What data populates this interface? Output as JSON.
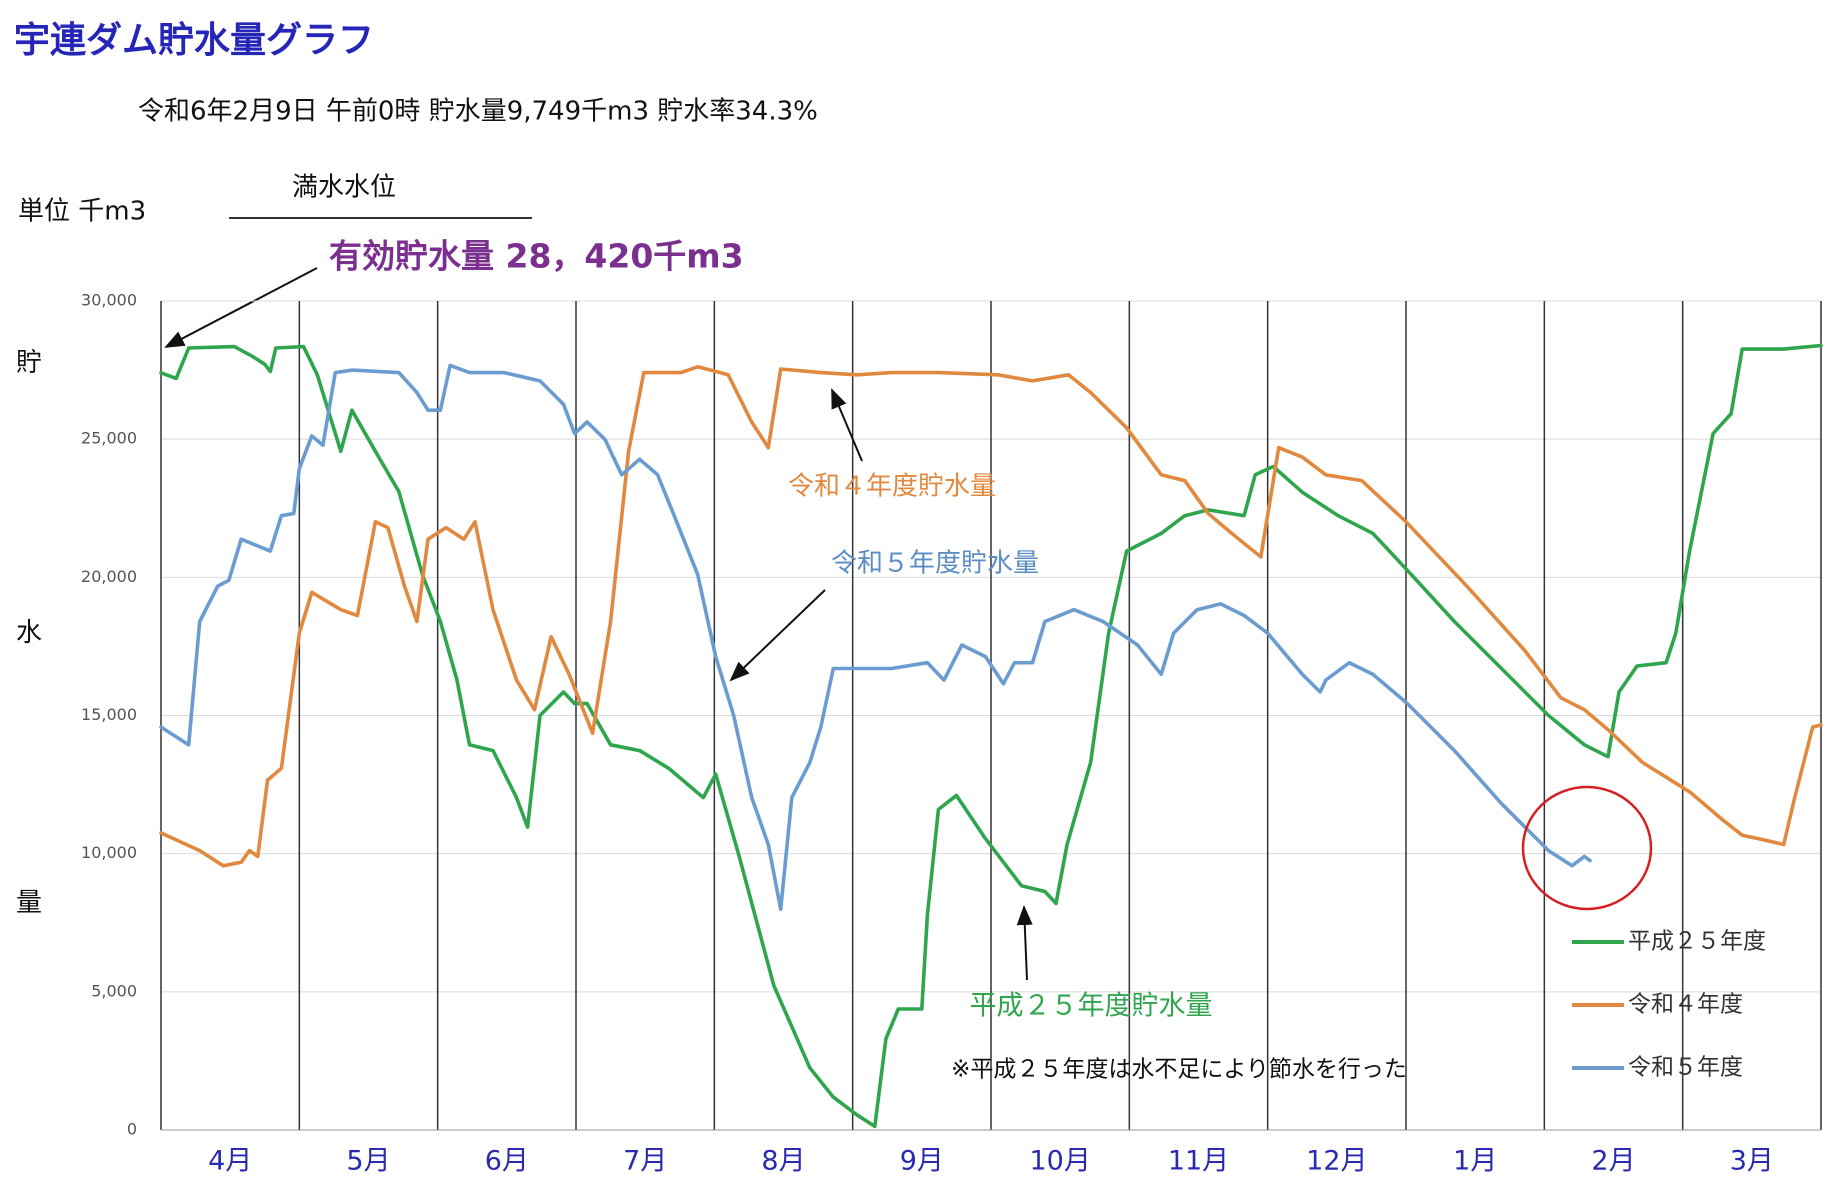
{
  "chart_data": {
    "type": "line",
    "title": "宇連ダム貯水量グラフ",
    "subtitle": "令和6年2月9日 午前0時  貯水量9,749千m3  貯水率34.3%",
    "unit_label": "単位  千m3",
    "full_level_label": "満水水位",
    "capacity_label": "有効貯水量 28，420千m3",
    "y_label": "貯水量",
    "annotations": [
      "令和４年度貯水量",
      "令和５年度貯水量",
      "平成２５年度貯水量"
    ],
    "note": "※平成２５年度は水不足により節水を行った",
    "xlim": [
      0,
      12
    ],
    "xticks": [
      {
        "value": 0.5,
        "label": "4月"
      },
      {
        "value": 1.5,
        "label": "5月"
      },
      {
        "value": 2.5,
        "label": "6月"
      },
      {
        "value": 3.5,
        "label": "7月"
      },
      {
        "value": 4.5,
        "label": "8月"
      },
      {
        "value": 5.5,
        "label": "9月"
      },
      {
        "value": 6.5,
        "label": "10月"
      },
      {
        "value": 7.5,
        "label": "11月"
      },
      {
        "value": 8.5,
        "label": "12月"
      },
      {
        "value": 9.5,
        "label": "1月"
      },
      {
        "value": 10.5,
        "label": "2月"
      },
      {
        "value": 11.5,
        "label": "3月"
      }
    ],
    "ylim": [
      0,
      30000
    ],
    "yticks": [
      0,
      {
        "value": 5000,
        "label": "5,000"
      },
      {
        "value": 10000,
        "label": "10,000"
      },
      {
        "value": 15000,
        "label": "15,000"
      },
      {
        "value": 20000,
        "label": "20,000"
      },
      {
        "value": 25000,
        "label": "25,000"
      },
      {
        "value": 30000,
        "label": "30,000"
      }
    ],
    "grid": true,
    "legend": "lower right",
    "series": [
      {
        "name": "平成２５年度",
        "color": "#2fa64e",
        "x": [
          0,
          0.11,
          0.2,
          0.53,
          0.66,
          0.75,
          0.79,
          0.83,
          1.03,
          1.13,
          1.3,
          1.38,
          1.55,
          1.72,
          1.89,
          2.02,
          2.14,
          2.23,
          2.4,
          2.57,
          2.65,
          2.74,
          2.91,
          2.99,
          3.08,
          3.25,
          3.46,
          3.67,
          3.92,
          4.01,
          4.18,
          4.43,
          4.69,
          4.86,
          5.03,
          5.16,
          5.24,
          5.33,
          5.5,
          5.54,
          5.62,
          5.75,
          5.96,
          6.22,
          6.39,
          6.47,
          6.55,
          6.72,
          6.85,
          6.98,
          7.23,
          7.4,
          7.57,
          7.83,
          7.91,
          8.04,
          8.25,
          8.51,
          8.76,
          9.0,
          9.35,
          9.69,
          10.03,
          10.29,
          10.46,
          10.54,
          10.67,
          10.88,
          10.95,
          11.05,
          11.22,
          11.35,
          11.43,
          11.73,
          12.0
        ],
        "values": [
          27400,
          27200,
          28300,
          28350,
          28000,
          27710,
          27450,
          28300,
          28350,
          27330,
          24560,
          26050,
          24560,
          23100,
          20100,
          18400,
          16280,
          13940,
          13730,
          12030,
          10960,
          15000,
          15850,
          15430,
          15430,
          13940,
          13730,
          13090,
          12030,
          12880,
          9900,
          5230,
          2250,
          1190,
          550,
          130,
          3300,
          4380,
          4380,
          7780,
          11600,
          12110,
          10540,
          8840,
          8630,
          8200,
          10330,
          13300,
          17980,
          20950,
          21590,
          22230,
          22440,
          22230,
          23710,
          24010,
          23080,
          22230,
          21590,
          20310,
          18400,
          16700,
          15000,
          13940,
          13510,
          15850,
          16790,
          16910,
          17980,
          20950,
          25200,
          25920,
          28260,
          28260,
          28390
        ]
      },
      {
        "name": "令和４年度",
        "color": "#e0893f",
        "x": [
          0,
          0.28,
          0.45,
          0.58,
          0.64,
          0.7,
          0.77,
          0.87,
          1.0,
          1.09,
          1.3,
          1.42,
          1.55,
          1.64,
          1.76,
          1.85,
          1.93,
          2.06,
          2.19,
          2.27,
          2.4,
          2.57,
          2.7,
          2.82,
          2.95,
          3.12,
          3.25,
          3.38,
          3.49,
          3.76,
          3.88,
          4.1,
          4.27,
          4.39,
          4.48,
          4.77,
          5.03,
          5.28,
          5.62,
          6.05,
          6.3,
          6.56,
          6.72,
          6.98,
          7.23,
          7.4,
          7.57,
          7.74,
          7.95,
          8.08,
          8.25,
          8.42,
          8.68,
          9.0,
          9.44,
          9.86,
          10.12,
          10.29,
          10.46,
          10.71,
          11.05,
          11.3,
          11.43,
          11.55,
          11.73,
          11.81,
          11.94,
          12.0
        ],
        "values": [
          10750,
          10110,
          9560,
          9690,
          10110,
          9900,
          12660,
          13090,
          17980,
          19460,
          18830,
          18620,
          22010,
          21800,
          19680,
          18400,
          21380,
          21800,
          21380,
          22010,
          18830,
          16280,
          15210,
          17850,
          16490,
          14360,
          18400,
          24560,
          27410,
          27410,
          27620,
          27330,
          25620,
          24690,
          27540,
          27410,
          27330,
          27410,
          27410,
          27330,
          27110,
          27330,
          26690,
          25410,
          23710,
          23500,
          22310,
          21590,
          20740,
          24690,
          24350,
          23710,
          23500,
          22010,
          19680,
          17340,
          15640,
          15210,
          14490,
          13300,
          12240,
          11180,
          10670,
          10540,
          10330,
          12030,
          14580,
          14660
        ]
      },
      {
        "name": "令和５年度",
        "color": "#6b9ccf",
        "x": [
          0,
          0.2,
          0.28,
          0.41,
          0.49,
          0.58,
          0.79,
          0.87,
          0.96,
          1.0,
          1.09,
          1.17,
          1.26,
          1.38,
          1.72,
          1.85,
          1.93,
          2.02,
          2.09,
          2.23,
          2.48,
          2.74,
          2.91,
          2.99,
          3.08,
          3.21,
          3.33,
          3.46,
          3.59,
          3.71,
          3.88,
          4.01,
          4.14,
          4.27,
          4.39,
          4.48,
          4.56,
          4.69,
          4.77,
          4.86,
          5.03,
          5.28,
          5.54,
          5.66,
          5.79,
          5.96,
          6.09,
          6.17,
          6.3,
          6.39,
          6.6,
          6.81,
          7.06,
          7.23,
          7.32,
          7.49,
          7.66,
          7.83,
          8.0,
          8.25,
          8.38,
          8.42,
          8.59,
          8.76,
          9.01,
          9.35,
          9.69,
          9.86,
          10.03,
          10.2,
          10.29,
          10.33
        ],
        "values": [
          14580,
          13940,
          18400,
          19680,
          19890,
          21380,
          20950,
          22230,
          22310,
          23930,
          25120,
          24780,
          27410,
          27500,
          27410,
          26690,
          26050,
          26050,
          27670,
          27410,
          27410,
          27110,
          26260,
          25200,
          25620,
          24990,
          23710,
          24270,
          23710,
          22230,
          20100,
          17130,
          15000,
          12030,
          10330,
          7990,
          12030,
          13300,
          14580,
          16700,
          16700,
          16700,
          16910,
          16280,
          17550,
          17130,
          16150,
          16910,
          16910,
          18400,
          18830,
          18400,
          17550,
          16490,
          17980,
          18830,
          19040,
          18620,
          17980,
          16490,
          15850,
          16280,
          16910,
          16490,
          15430,
          13730,
          11810,
          10960,
          10110,
          9560,
          9900,
          9749
        ]
      }
    ]
  }
}
